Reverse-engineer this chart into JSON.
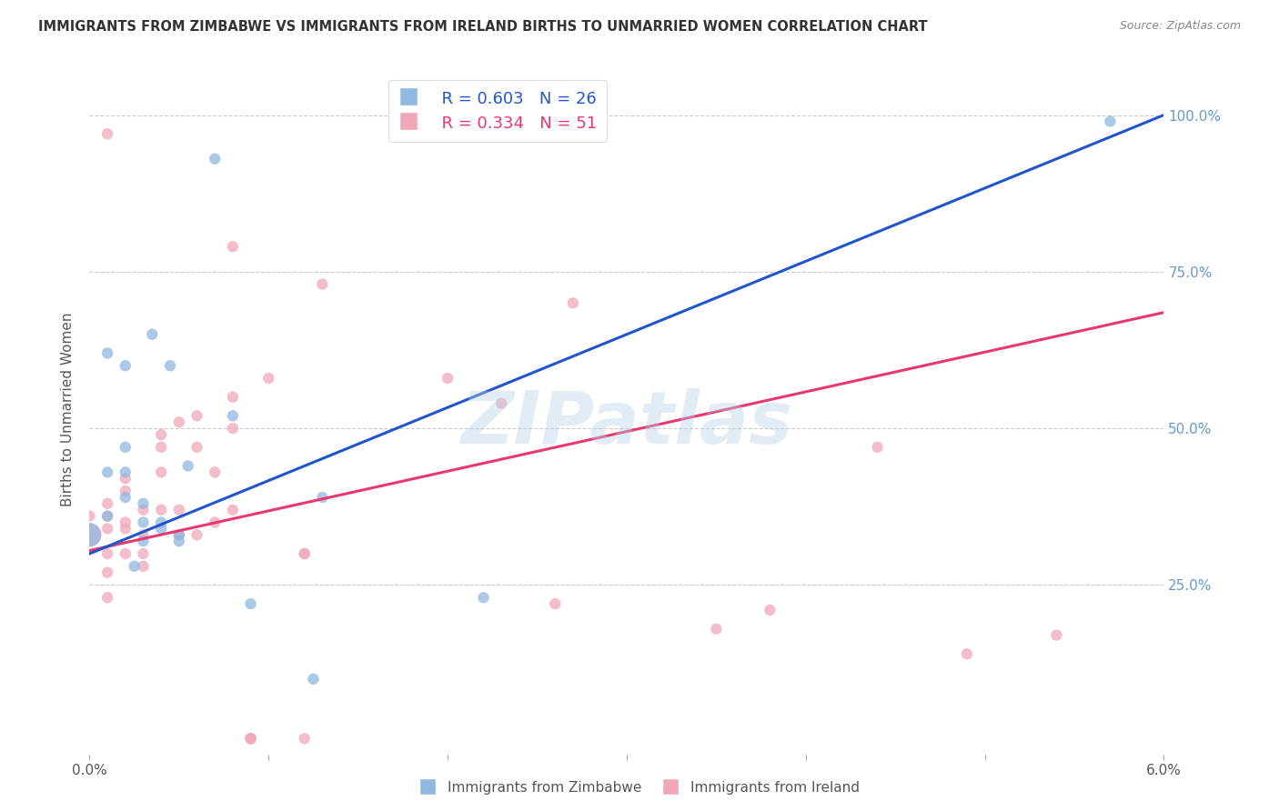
{
  "title": "IMMIGRANTS FROM ZIMBABWE VS IMMIGRANTS FROM IRELAND BIRTHS TO UNMARRIED WOMEN CORRELATION CHART",
  "source": "Source: ZipAtlas.com",
  "xlabel_blue": "Immigrants from Zimbabwe",
  "xlabel_pink": "Immigrants from Ireland",
  "ylabel": "Births to Unmarried Women",
  "watermark": "ZIPatlas",
  "xlim": [
    0.0,
    0.06
  ],
  "ylim": [
    -0.02,
    1.08
  ],
  "yticks": [
    0.25,
    0.5,
    0.75,
    1.0
  ],
  "ytick_labels": [
    "25.0%",
    "50.0%",
    "75.0%",
    "100.0%"
  ],
  "xticks": [
    0.0,
    0.01,
    0.02,
    0.03,
    0.04,
    0.05,
    0.06
  ],
  "xtick_labels_show": {
    "0.0": "0.0%",
    "0.06": "6.0%"
  },
  "legend_blue_R": "R = 0.603",
  "legend_blue_N": "N = 26",
  "legend_pink_R": "R = 0.334",
  "legend_pink_N": "N = 51",
  "blue_color": "#90b8e0",
  "pink_color": "#f0a8b8",
  "line_blue": "#2255cc",
  "line_pink": "#e83870",
  "blue_points_x": [
    0.001,
    0.001,
    0.001,
    0.002,
    0.002,
    0.002,
    0.002,
    0.003,
    0.003,
    0.003,
    0.0035,
    0.004,
    0.004,
    0.0045,
    0.005,
    0.005,
    0.0055,
    0.007,
    0.008,
    0.009,
    0.0125,
    0.013,
    0.022,
    0.057,
    0.0,
    0.0025
  ],
  "blue_points_y": [
    0.43,
    0.36,
    0.62,
    0.43,
    0.39,
    0.47,
    0.6,
    0.35,
    0.32,
    0.38,
    0.65,
    0.34,
    0.35,
    0.6,
    0.33,
    0.32,
    0.44,
    0.93,
    0.52,
    0.22,
    0.1,
    0.39,
    0.23,
    0.99,
    0.33,
    0.28
  ],
  "blue_sizes": [
    80,
    80,
    80,
    80,
    80,
    80,
    80,
    80,
    80,
    80,
    80,
    80,
    80,
    80,
    80,
    80,
    80,
    80,
    80,
    80,
    80,
    80,
    80,
    80,
    350,
    80
  ],
  "pink_points_x": [
    0.0,
    0.001,
    0.001,
    0.001,
    0.001,
    0.001,
    0.002,
    0.002,
    0.002,
    0.002,
    0.002,
    0.003,
    0.003,
    0.003,
    0.003,
    0.004,
    0.004,
    0.004,
    0.004,
    0.005,
    0.005,
    0.005,
    0.006,
    0.006,
    0.006,
    0.007,
    0.007,
    0.008,
    0.008,
    0.008,
    0.009,
    0.009,
    0.01,
    0.012,
    0.012,
    0.013,
    0.02,
    0.023,
    0.026,
    0.027,
    0.035,
    0.038,
    0.044,
    0.049,
    0.054,
    0.0,
    0.001,
    0.001,
    0.008,
    0.009,
    0.012
  ],
  "pink_points_y": [
    0.36,
    0.34,
    0.36,
    0.27,
    0.23,
    0.97,
    0.34,
    0.4,
    0.42,
    0.35,
    0.3,
    0.37,
    0.3,
    0.28,
    0.33,
    0.49,
    0.47,
    0.43,
    0.37,
    0.37,
    0.51,
    0.33,
    0.33,
    0.47,
    0.52,
    0.35,
    0.43,
    0.5,
    0.37,
    0.79,
    0.005,
    0.005,
    0.58,
    0.3,
    0.3,
    0.73,
    0.58,
    0.54,
    0.22,
    0.7,
    0.18,
    0.21,
    0.47,
    0.14,
    0.17,
    0.33,
    0.38,
    0.3,
    0.55,
    0.005,
    0.005
  ],
  "pink_sizes": [
    80,
    80,
    80,
    80,
    80,
    80,
    80,
    80,
    80,
    80,
    80,
    80,
    80,
    80,
    80,
    80,
    80,
    80,
    80,
    80,
    80,
    80,
    80,
    80,
    80,
    80,
    80,
    80,
    80,
    80,
    80,
    80,
    80,
    80,
    80,
    80,
    80,
    80,
    80,
    80,
    80,
    80,
    80,
    80,
    80,
    350,
    80,
    80,
    80,
    80,
    80
  ],
  "blue_line_x": [
    0.0,
    0.06
  ],
  "blue_line_y": [
    0.3,
    1.0
  ],
  "pink_line_x": [
    0.0,
    0.06
  ],
  "pink_line_y": [
    0.305,
    0.685
  ],
  "background_color": "#ffffff",
  "grid_color": "#cccccc",
  "title_color": "#333333",
  "source_color": "#888888",
  "right_tick_color": "#6699cc",
  "ylabel_color": "#555555"
}
